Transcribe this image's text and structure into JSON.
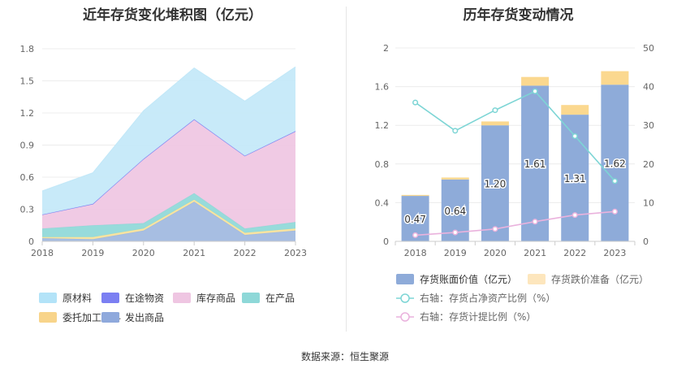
{
  "left_title": "近年存货变化堆积图（亿元）",
  "right_title": "历年存货变动情况",
  "source": "数据来源：恒生聚源",
  "chart_data": [
    {
      "type": "area",
      "stacked": true,
      "title": "近年存货变化堆积图（亿元）",
      "categories": [
        "2018",
        "2019",
        "2020",
        "2021",
        "2022",
        "2023"
      ],
      "ylim": [
        0,
        1.8
      ],
      "yticks": [
        "0",
        "0.3",
        "0.6",
        "0.9",
        "1.2",
        "1.5",
        "1.8"
      ],
      "grid": true,
      "legend_position": "bottom",
      "series": [
        {
          "name": "发出商品",
          "color": "#9fb8e0",
          "values": [
            0.03,
            0.02,
            0.1,
            0.37,
            0.06,
            0.1
          ]
        },
        {
          "name": "委托加工材料",
          "color": "#f8e29a",
          "values": [
            0.01,
            0.02,
            0.02,
            0.02,
            0.02,
            0.02
          ]
        },
        {
          "name": "在产品",
          "color": "#8ed8d8",
          "values": [
            0.08,
            0.11,
            0.05,
            0.06,
            0.04,
            0.06
          ]
        },
        {
          "name": "库存商品",
          "color": "#efc6e2",
          "values": [
            0.13,
            0.2,
            0.6,
            0.69,
            0.68,
            0.85
          ]
        },
        {
          "name": "在途物资",
          "color": "#7b7ff2",
          "values": [
            0,
            0,
            0,
            0,
            0,
            0
          ]
        },
        {
          "name": "原材料",
          "color": "#c3e8f8",
          "values": [
            0.22,
            0.29,
            0.45,
            0.48,
            0.51,
            0.6
          ]
        }
      ],
      "legend": [
        {
          "name": "原材料",
          "color": "#b3e3f8"
        },
        {
          "name": "在途物资",
          "color": "#7b7ff2"
        },
        {
          "name": "库存商品",
          "color": "#efc6e2"
        },
        {
          "name": "在产品",
          "color": "#8ed8d8"
        },
        {
          "name": "委托加工材料",
          "color": "#f8d48a"
        },
        {
          "name": "发出商品",
          "color": "#8fa9dc"
        }
      ]
    },
    {
      "type": "bar",
      "stacked": true,
      "title": "历年存货变动情况",
      "categories": [
        "2018",
        "2019",
        "2020",
        "2021",
        "2022",
        "2023"
      ],
      "ylim": [
        0,
        2
      ],
      "yticks": [
        "0",
        "0.4",
        "0.8",
        "1.2",
        "1.6",
        "2"
      ],
      "y2lim": [
        0,
        50
      ],
      "y2ticks": [
        "0",
        "10",
        "20",
        "30",
        "40",
        "50"
      ],
      "series": [
        {
          "name": "存货账面价值（亿元）",
          "color": "#8eabd9",
          "values": [
            0.47,
            0.64,
            1.2,
            1.61,
            1.31,
            1.62
          ],
          "labels": [
            "0.47",
            "0.64",
            "1.20",
            "1.61",
            "1.31",
            "1.62"
          ]
        },
        {
          "name": "存货跌价准备（亿元）",
          "color": "#fbd88f",
          "values": [
            0.01,
            0.02,
            0.04,
            0.09,
            0.1,
            0.14
          ]
        }
      ],
      "lines": [
        {
          "name": "右轴：存货占净资产比例（%）",
          "color": "#7dd5d5",
          "axis": "right",
          "values": [
            35.9,
            28.6,
            33.9,
            38.8,
            27.2,
            15.6
          ]
        },
        {
          "name": "右轴：存货计提比例（%）",
          "color": "#eab2dd",
          "axis": "right",
          "values": [
            1.6,
            2.3,
            3.2,
            5.1,
            6.8,
            7.7
          ]
        }
      ]
    }
  ]
}
